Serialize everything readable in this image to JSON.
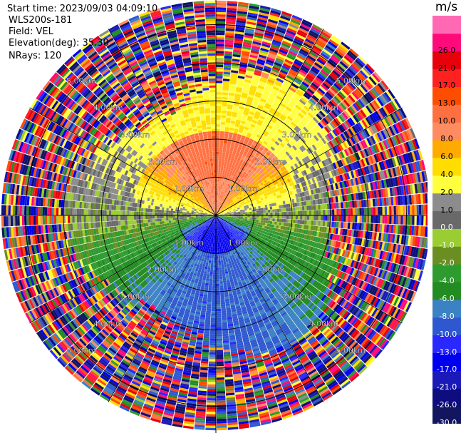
{
  "header": {
    "start_time": "Start time: 2023/09/03 04:09:10",
    "instrument": "WLS200s-181",
    "field": "Field: VEL",
    "elevation": "Elevation(deg): 35.30",
    "nrays": "NRays: 120"
  },
  "chart_data": {
    "type": "heatmap",
    "projection": "polar-ppi",
    "field": "VEL",
    "units": "m/s",
    "elevation_deg": 35.3,
    "n_rays": 120,
    "range_rings_km": [
      1.0,
      2.0,
      3.0,
      4.0,
      5.0
    ],
    "ring_labels": [
      "1.00km",
      "2.00km",
      "3.00km",
      "4.00km",
      "5.00km"
    ],
    "max_range_km": 5.6,
    "radial_spokes_deg": [
      0,
      30,
      60,
      90,
      120,
      150,
      180,
      210,
      240,
      270,
      300,
      330
    ],
    "colorbar": {
      "unit": "m/s",
      "range": [
        -30,
        30
      ],
      "boundaries": [
        -30,
        -26,
        -21,
        -17,
        -13,
        -10,
        -8,
        -6,
        -4,
        -2,
        -1,
        0,
        1,
        2,
        4,
        6,
        8,
        10,
        13,
        17,
        21,
        26,
        30
      ],
      "tick_labels": [
        "-30.0",
        "-26.0",
        "-21.0",
        "-17.0",
        "-13.0",
        "-10.0",
        "-8.0",
        "-6.0",
        "-4.0",
        "-2.0",
        "-1.0",
        "0.0",
        "1.0",
        "2.0",
        "4.0",
        "6.0",
        "8.0",
        "10.0",
        "13.0",
        "17.0",
        "21.0",
        "26.0"
      ],
      "colors": [
        "#11165e",
        "#0d0d80",
        "#1a1ab8",
        "#0000f0",
        "#2828ff",
        "#2f58d0",
        "#3b82c4",
        "#228b22",
        "#2e9b2e",
        "#6b8e23",
        "#9acd32",
        "#696969",
        "#8c8c8c",
        "#ffff40",
        "#ffdd00",
        "#ffaa00",
        "#ff8c60",
        "#ff7040",
        "#ff4d00",
        "#ff2020",
        "#e8000b",
        "#ff0a7a",
        "#ff69b4"
      ]
    },
    "velocity_pattern": "northern sector positive (away), southern sector negative (toward); noisy beyond ~3.5 km"
  }
}
